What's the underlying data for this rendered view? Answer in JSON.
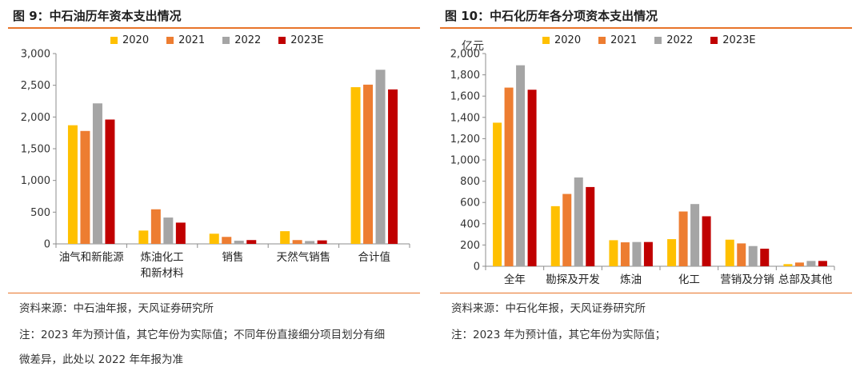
{
  "colors": {
    "s2020": "#ffc000",
    "s2021": "#ed7d31",
    "s2022": "#a5a5a5",
    "s2023": "#c00000",
    "rule": "#e8742a"
  },
  "legend": [
    "2020",
    "2021",
    "2022",
    "2023E"
  ],
  "left": {
    "title": "图 9：中石油历年资本支出情况",
    "source": "资料来源：中石油年报，天风证券研究所",
    "note1": "注：2023 年为预计值，其它年份为实际值；不同年份直接细分项目划分有细",
    "note2": "微差异，此处以 2022 年年报为准"
  },
  "right": {
    "title": "图 10：中石化历年各分项资本支出情况",
    "source": "资料来源：中石化年报，天风证券研究所",
    "note1": "注：2023 年为预计值，其它年份为实际值；"
  },
  "chart_data": [
    {
      "type": "bar",
      "title": "中石油历年资本支出情况",
      "ylabel": "",
      "ylim": [
        0,
        3000
      ],
      "yticks": [
        0,
        500,
        1000,
        1500,
        2000,
        2500,
        3000
      ],
      "ytick_labels": [
        "0",
        "500",
        "1,000",
        "1,500",
        "2,000",
        "2,500",
        "3,000"
      ],
      "categories": [
        "油气和新能源",
        "炼油化工\n和新材料",
        "销售",
        "天然气销售",
        "合计值"
      ],
      "series": [
        {
          "name": "2020",
          "values": [
            1870,
            210,
            160,
            200,
            2470
          ]
        },
        {
          "name": "2021",
          "values": [
            1780,
            545,
            110,
            60,
            2510
          ]
        },
        {
          "name": "2022",
          "values": [
            2215,
            415,
            50,
            45,
            2745
          ]
        },
        {
          "name": "2023E",
          "values": [
            1960,
            335,
            60,
            55,
            2435
          ]
        }
      ]
    },
    {
      "type": "bar",
      "title": "中石化历年各分项资本支出情况",
      "ylabel": "亿元",
      "ylim": [
        0,
        2000
      ],
      "yticks": [
        0,
        200,
        400,
        600,
        800,
        1000,
        1200,
        1400,
        1600,
        1800,
        2000
      ],
      "ytick_labels": [
        "0",
        "200",
        "400",
        "600",
        "800",
        "1,000",
        "1,200",
        "1,400",
        "1,600",
        "1,800",
        "2,000"
      ],
      "categories": [
        "全年",
        "勘探及开发",
        "炼油",
        "化工",
        "营销及分销",
        "总部及其他"
      ],
      "series": [
        {
          "name": "2020",
          "values": [
            1350,
            565,
            245,
            255,
            250,
            20
          ]
        },
        {
          "name": "2021",
          "values": [
            1680,
            680,
            225,
            515,
            215,
            35
          ]
        },
        {
          "name": "2022",
          "values": [
            1890,
            835,
            228,
            585,
            190,
            50
          ]
        },
        {
          "name": "2023E",
          "values": [
            1660,
            745,
            228,
            470,
            165,
            50
          ]
        }
      ]
    }
  ]
}
